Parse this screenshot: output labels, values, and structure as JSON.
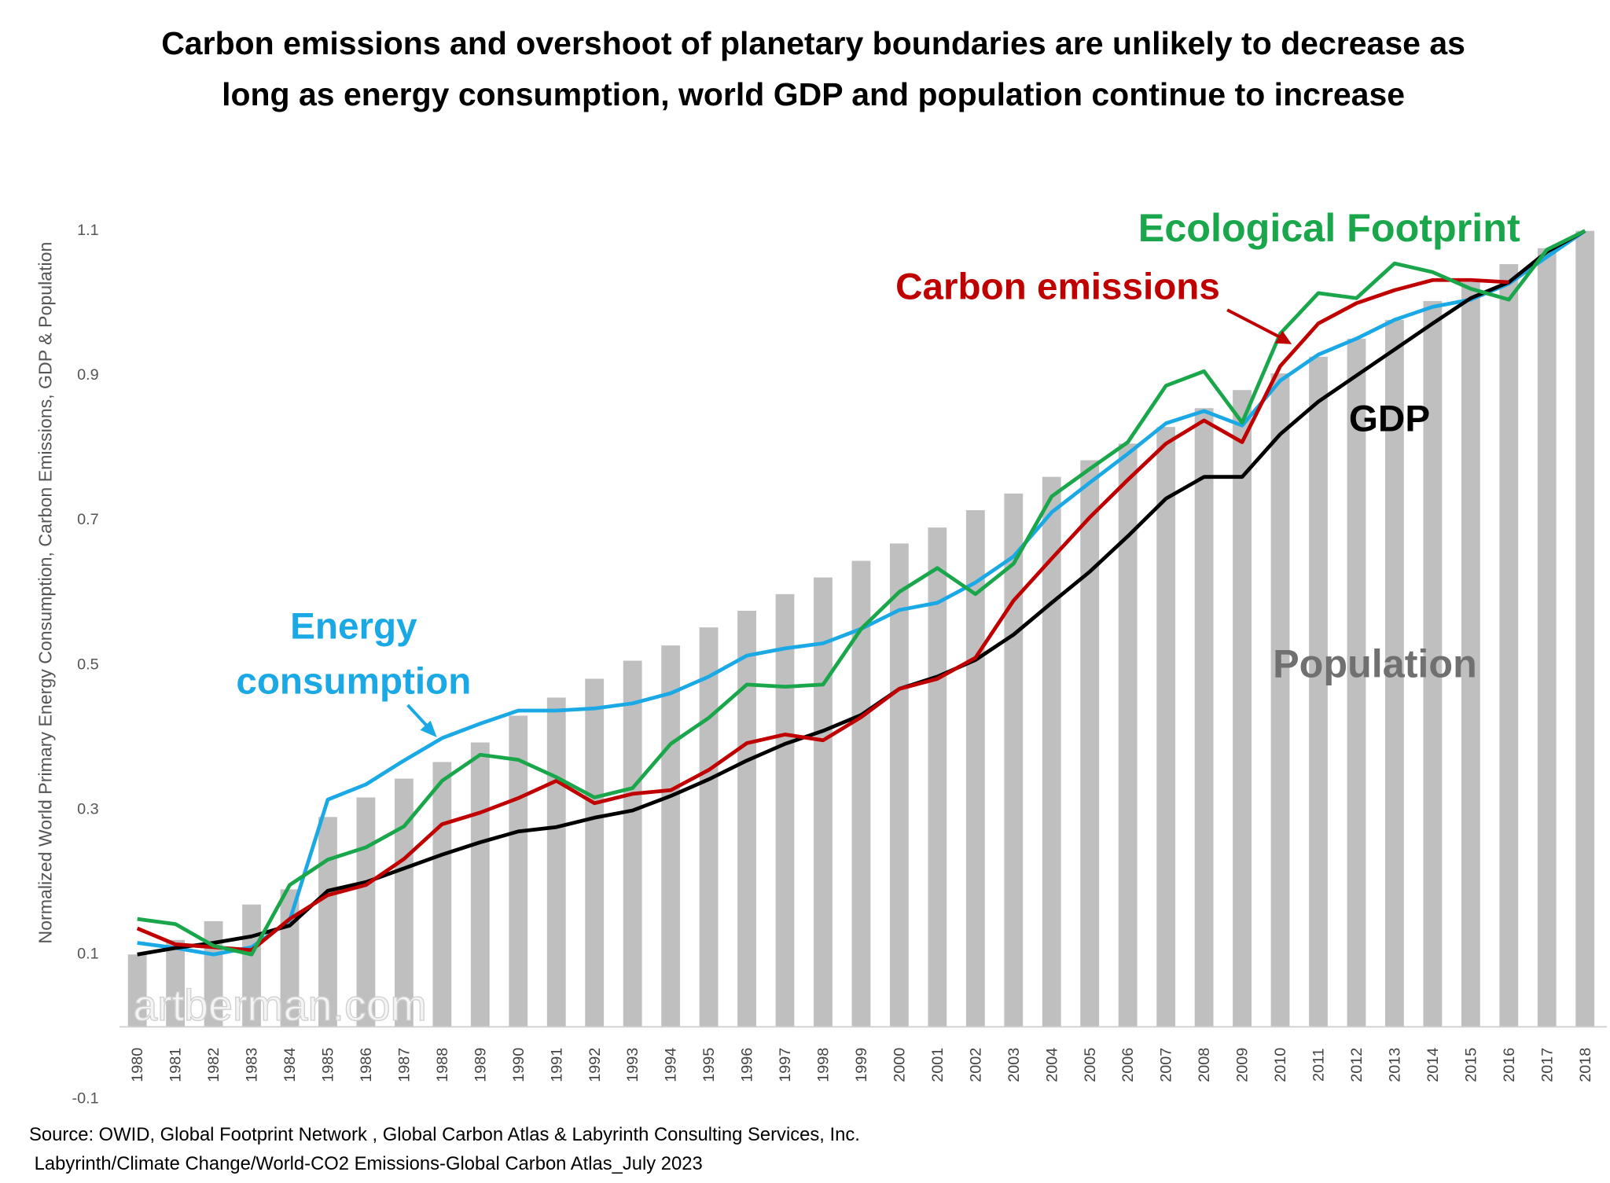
{
  "chart_data": {
    "type": "combo",
    "title": "Carbon emissions and overshoot of planetary boundaries are unlikely to decrease as long as energy consumption, world GDP and population continue to increase",
    "y_label": "Normalized World Primary Energy Consumption, Carbon Emissions, GDP & Population",
    "watermark": "artberman.com",
    "source": [
      "Source:  OWID, Global Footprint Network , Global Carbon Atlas & Labyrinth Consulting Services, Inc.",
      "Labyrinth/Climate Change/World-CO2 Emissions-Global Carbon Atlas_July 2023"
    ],
    "categories": [
      "1980",
      "1981",
      "1982",
      "1983",
      "1984",
      "1985",
      "1986",
      "1987",
      "1988",
      "1989",
      "1990",
      "1991",
      "1992",
      "1993",
      "1994",
      "1995",
      "1996",
      "1997",
      "1998",
      "1999",
      "2000",
      "2001",
      "2002",
      "2003",
      "2004",
      "2005",
      "2006",
      "2007",
      "2008",
      "2009",
      "2010",
      "2011",
      "2012",
      "2013",
      "2014",
      "2015",
      "2016",
      "2017",
      "2018"
    ],
    "ylim": [
      -0.1,
      1.1
    ],
    "yticks": [
      -0.1,
      0.1,
      0.3,
      0.5,
      0.7,
      0.9,
      1.1
    ],
    "series": [
      {
        "name": "Population",
        "type": "bar",
        "color": "#bfbfbf",
        "values": [
          0.1,
          0.12,
          0.146,
          0.169,
          0.19,
          0.29,
          0.317,
          0.343,
          0.366,
          0.393,
          0.43,
          0.455,
          0.481,
          0.506,
          0.527,
          0.552,
          0.575,
          0.598,
          0.621,
          0.644,
          0.668,
          0.69,
          0.714,
          0.737,
          0.76,
          0.783,
          0.806,
          0.829,
          0.855,
          0.88,
          0.903,
          0.926,
          0.951,
          0.977,
          1.003,
          1.029,
          1.054,
          1.076,
          1.1
        ]
      },
      {
        "name": "Energy consumption",
        "type": "line",
        "color": "#1ba9e6",
        "values": [
          0.116,
          0.109,
          0.1,
          0.11,
          0.147,
          0.314,
          0.335,
          0.368,
          0.399,
          0.419,
          0.437,
          0.437,
          0.44,
          0.447,
          0.461,
          0.484,
          0.513,
          0.523,
          0.53,
          0.55,
          0.576,
          0.586,
          0.614,
          0.65,
          0.711,
          0.752,
          0.792,
          0.834,
          0.851,
          0.831,
          0.893,
          0.929,
          0.951,
          0.977,
          0.995,
          1.005,
          1.027,
          1.064,
          1.1
        ]
      },
      {
        "name": "GDP",
        "type": "line",
        "color": "#000000",
        "values": [
          0.1,
          0.109,
          0.116,
          0.125,
          0.14,
          0.188,
          0.2,
          0.219,
          0.238,
          0.255,
          0.27,
          0.276,
          0.289,
          0.299,
          0.319,
          0.342,
          0.368,
          0.391,
          0.409,
          0.431,
          0.467,
          0.484,
          0.507,
          0.542,
          0.586,
          0.629,
          0.678,
          0.73,
          0.76,
          0.76,
          0.819,
          0.864,
          0.9,
          0.936,
          0.972,
          1.007,
          1.029,
          1.071,
          1.1
        ]
      },
      {
        "name": "Carbon emissions",
        "type": "line",
        "color": "#c00000",
        "values": [
          0.136,
          0.114,
          0.11,
          0.106,
          0.149,
          0.182,
          0.196,
          0.232,
          0.28,
          0.296,
          0.316,
          0.34,
          0.309,
          0.322,
          0.327,
          0.355,
          0.392,
          0.404,
          0.396,
          0.428,
          0.467,
          0.481,
          0.51,
          0.589,
          0.647,
          0.704,
          0.756,
          0.806,
          0.838,
          0.808,
          0.913,
          0.972,
          1.0,
          1.018,
          1.032,
          1.032,
          1.029,
          null,
          null
        ]
      },
      {
        "name": "Ecological Footprint",
        "type": "line",
        "color": "#1aa64a",
        "values": [
          0.149,
          0.142,
          0.112,
          0.1,
          0.196,
          0.231,
          0.248,
          0.277,
          0.34,
          0.376,
          0.369,
          0.345,
          0.317,
          0.33,
          0.391,
          0.427,
          0.473,
          0.47,
          0.473,
          0.55,
          0.601,
          0.634,
          0.598,
          0.64,
          0.733,
          0.771,
          0.808,
          0.886,
          0.906,
          0.835,
          0.958,
          1.014,
          1.007,
          1.055,
          1.043,
          1.02,
          1.005,
          1.074,
          1.1
        ]
      }
    ]
  }
}
